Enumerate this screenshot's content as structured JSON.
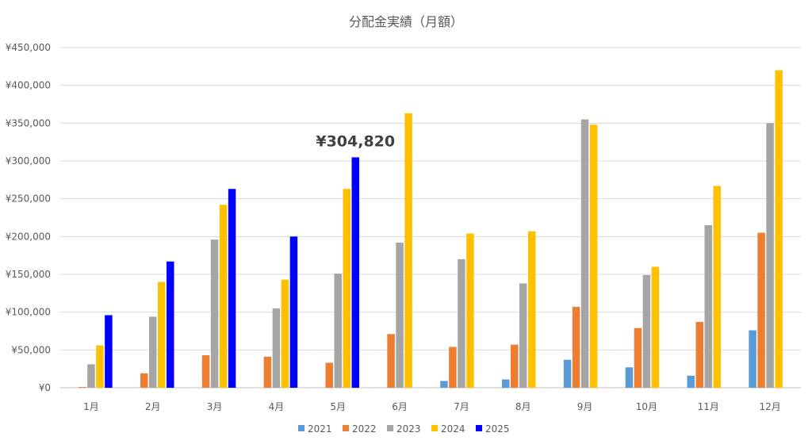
{
  "chart_data": {
    "type": "bar",
    "title": "分配金実績（月額）",
    "categories": [
      "1月",
      "2月",
      "3月",
      "4月",
      "5月",
      "6月",
      "7月",
      "8月",
      "9月",
      "10月",
      "11月",
      "12月"
    ],
    "y_tick_labels": [
      "¥0",
      "¥50,000",
      "¥100,000",
      "¥150,000",
      "¥200,000",
      "¥250,000",
      "¥300,000",
      "¥350,000",
      "¥400,000",
      "¥450,000"
    ],
    "ylim": [
      0,
      450000
    ],
    "grid": true,
    "legend_position": "bottom",
    "series": [
      {
        "name": "2021",
        "color": "#5b9bd5",
        "values": [
          0,
          0,
          0,
          0,
          0,
          0,
          9000,
          11000,
          37000,
          27000,
          16000,
          76000
        ]
      },
      {
        "name": "2022",
        "color": "#ed7d31",
        "values": [
          1000,
          19000,
          43000,
          41000,
          33000,
          71000,
          54000,
          57000,
          107000,
          79000,
          87000,
          205000
        ]
      },
      {
        "name": "2023",
        "color": "#a5a5a5",
        "values": [
          31000,
          94000,
          196000,
          105000,
          151000,
          192000,
          170000,
          138000,
          355000,
          149000,
          215000,
          350000
        ]
      },
      {
        "name": "2024",
        "color": "#ffc000",
        "values": [
          56000,
          140000,
          242000,
          143000,
          263000,
          363000,
          204000,
          207000,
          348000,
          160000,
          267000,
          420000
        ]
      },
      {
        "name": "2025",
        "color": "#0000ff",
        "values": [
          96000,
          167000,
          263000,
          200000,
          304820,
          null,
          null,
          null,
          null,
          null,
          null,
          null
        ]
      }
    ],
    "annotation": {
      "text": "¥304,820",
      "category": "5月",
      "series": "2025",
      "value": 304820
    }
  }
}
